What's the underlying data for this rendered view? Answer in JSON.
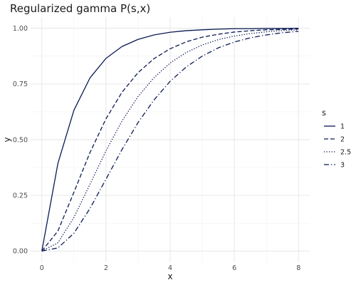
{
  "chart_data": {
    "type": "line",
    "title": "Regularized gamma P(s,x)",
    "xlabel": "x",
    "ylabel": "y",
    "xlim": [
      0,
      8
    ],
    "ylim": [
      0,
      1
    ],
    "x_ticks": [
      0,
      2,
      4,
      6,
      8
    ],
    "x_tick_labels": [
      "0",
      "2",
      "4",
      "6",
      "8"
    ],
    "y_ticks": [
      0,
      0.25,
      0.5,
      0.75,
      1
    ],
    "y_tick_labels": [
      "0.00",
      "0.25",
      "0.50",
      "0.75",
      "1.00"
    ],
    "grid": true,
    "legend": {
      "title": "s",
      "position": "right"
    },
    "line_color": "#0b1a54",
    "x": [
      0,
      0.5,
      1,
      1.5,
      2,
      2.5,
      3,
      3.5,
      4,
      4.5,
      5,
      5.5,
      6,
      6.5,
      7,
      7.5,
      8
    ],
    "series": [
      {
        "name": "1",
        "line_style": "solid",
        "values": [
          0,
          0.393,
          0.632,
          0.777,
          0.865,
          0.918,
          0.95,
          0.97,
          0.982,
          0.989,
          0.993,
          0.996,
          0.998,
          0.998,
          0.999,
          0.999,
          1.0
        ]
      },
      {
        "name": "2",
        "line_style": "dashed",
        "values": [
          0,
          0.09,
          0.264,
          0.442,
          0.594,
          0.713,
          0.801,
          0.864,
          0.908,
          0.939,
          0.96,
          0.973,
          0.983,
          0.989,
          0.993,
          0.995,
          0.997
        ]
      },
      {
        "name": "2.5",
        "line_style": "dotted",
        "values": [
          0,
          0.037,
          0.151,
          0.3,
          0.45,
          0.584,
          0.694,
          0.779,
          0.844,
          0.891,
          0.925,
          0.949,
          0.965,
          0.976,
          0.984,
          0.99,
          0.993
        ]
      },
      {
        "name": "3",
        "line_style": "dashdot",
        "values": [
          0,
          0.014,
          0.08,
          0.191,
          0.323,
          0.456,
          0.577,
          0.679,
          0.762,
          0.826,
          0.875,
          0.912,
          0.938,
          0.957,
          0.97,
          0.98,
          0.986
        ]
      }
    ]
  }
}
